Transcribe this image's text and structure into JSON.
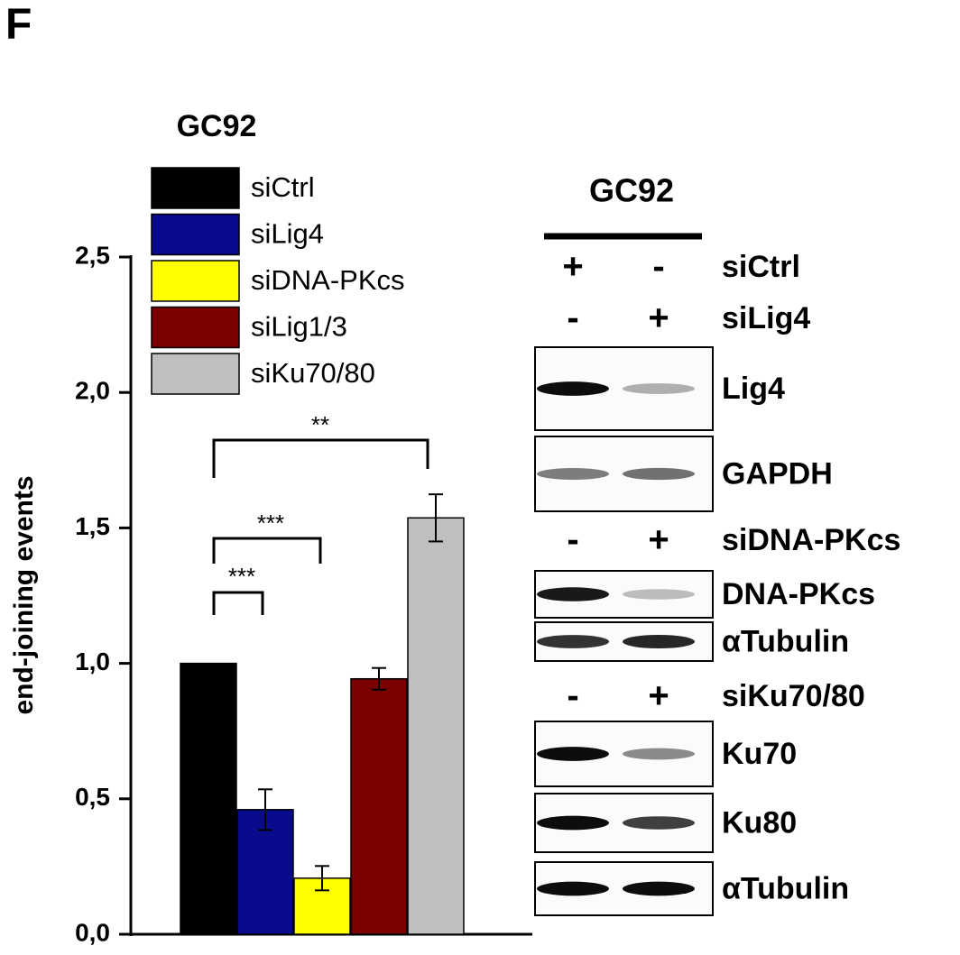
{
  "panel_label": "F",
  "chart_data": {
    "type": "bar",
    "title": "GC92",
    "ylabel": "end-joining events",
    "categories": [
      null
    ],
    "series": [
      {
        "name": "siCtrl",
        "color": "#000000",
        "values": [
          1.0
        ],
        "errors": [
          null
        ]
      },
      {
        "name": "siLig4",
        "color": "#0a0a8c",
        "values": [
          0.46
        ],
        "errors": [
          0.075
        ]
      },
      {
        "name": "siDNA-PKcs",
        "color": "#ffff00",
        "values": [
          0.207
        ],
        "errors": [
          0.045
        ]
      },
      {
        "name": "siLig1/3",
        "color": "#7a0000",
        "values": [
          0.943
        ],
        "errors": [
          0.04
        ]
      },
      {
        "name": "siKu70/80",
        "color": "#bfbfbf",
        "values": [
          1.537
        ],
        "errors": [
          0.087
        ]
      }
    ],
    "annotations": [
      "**",
      "***",
      "***"
    ],
    "ylim": [
      0,
      2.5
    ],
    "yticks": [
      {
        "value": 0,
        "label": "0,0"
      },
      {
        "value": 0.5,
        "label": "0,5"
      },
      {
        "value": 1,
        "label": "1,0"
      },
      {
        "value": 1.5,
        "label": "1,5"
      },
      {
        "value": 2,
        "label": "2,0"
      },
      {
        "value": 2.5,
        "label": "2,5"
      }
    ]
  },
  "blot": {
    "title": "GC92",
    "treatments": [
      {
        "signs": [
          "+",
          "-"
        ],
        "label": "siCtrl"
      },
      {
        "signs": [
          "-",
          "+"
        ],
        "label": "siLig4"
      },
      {
        "signs": [
          "-",
          "+"
        ],
        "label": "siDNA-PKcs"
      },
      {
        "signs": [
          "-",
          "+"
        ],
        "label": "siKu70/80"
      }
    ],
    "bands": [
      "Lig4",
      "GAPDH",
      "DNA-PKcs",
      "αTubulin",
      "Ku70",
      "Ku80",
      "αTubulin"
    ]
  }
}
